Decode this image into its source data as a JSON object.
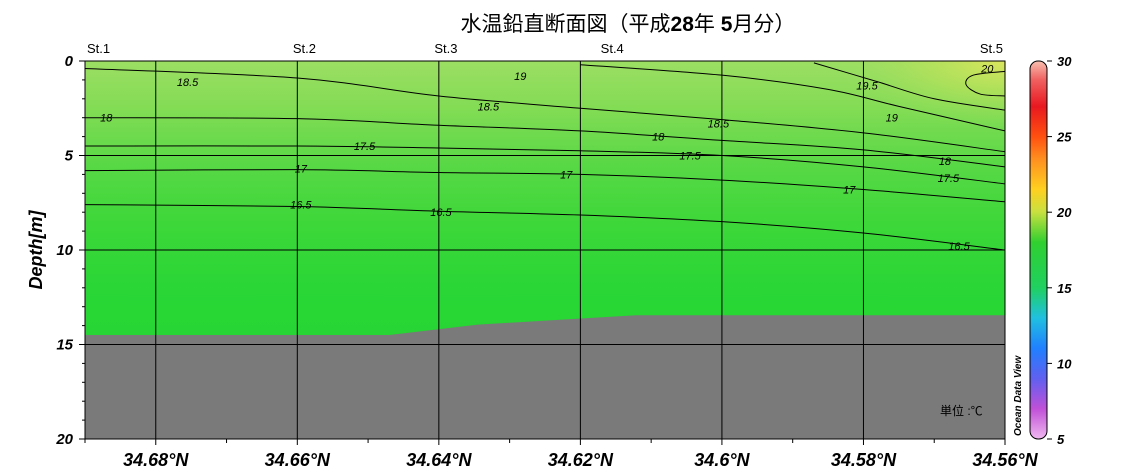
{
  "chart_data": {
    "type": "heatmap",
    "title_parts": [
      "水温鉛直断面図（平成",
      "28",
      "年 ",
      "5",
      "月分）"
    ],
    "ylabel": "Depth[m]",
    "y_ticks": [
      "0",
      "5",
      "10",
      "15",
      "20"
    ],
    "ylim": [
      20,
      0
    ],
    "x_ticks": [
      "34.68°N",
      "34.66°N",
      "34.64°N",
      "34.62°N",
      "34.6°N",
      "34.58°N",
      "34.56°N"
    ],
    "x_tick_values": [
      34.68,
      34.66,
      34.64,
      34.62,
      34.6,
      34.58,
      34.56
    ],
    "xlim": [
      34.69,
      34.56
    ],
    "stations": [
      {
        "name": "St.1",
        "lat": 34.69
      },
      {
        "name": "St.2",
        "lat": 34.659
      },
      {
        "name": "St.3",
        "lat": 34.639
      },
      {
        "name": "St.4",
        "lat": 34.6155
      },
      {
        "name": "St.5",
        "lat": 34.56
      }
    ],
    "unit_label": "単位 :℃",
    "watermark": "Ocean Data View",
    "colorbar": {
      "min": 5,
      "max": 30,
      "ticks": [
        "5",
        "10",
        "15",
        "20",
        "25",
        "30"
      ],
      "tick_values": [
        5,
        10,
        15,
        20,
        25,
        30
      ]
    },
    "contours": [
      {
        "value": 16.5,
        "points": [
          [
            34.69,
            7.6
          ],
          [
            34.66,
            7.7
          ],
          [
            34.64,
            7.95
          ],
          [
            34.62,
            8.15
          ],
          [
            34.6,
            8.5
          ],
          [
            34.58,
            9.1
          ],
          [
            34.56,
            10.0
          ]
        ],
        "labels": [
          {
            "text": "16.5",
            "lat": 34.6595,
            "depth": 7.6
          },
          {
            "text": "16.5",
            "lat": 34.6397,
            "depth": 8.0
          },
          {
            "text": "16.5",
            "lat": 34.5665,
            "depth": 9.8
          }
        ]
      },
      {
        "value": 17,
        "points": [
          [
            34.69,
            5.8
          ],
          [
            34.66,
            5.75
          ],
          [
            34.64,
            5.9
          ],
          [
            34.62,
            6.0
          ],
          [
            34.6,
            6.3
          ],
          [
            34.58,
            6.8
          ],
          [
            34.56,
            7.45
          ]
        ],
        "labels": [
          {
            "text": "17",
            "lat": 34.6595,
            "depth": 5.7
          },
          {
            "text": "17",
            "lat": 34.622,
            "depth": 6.0
          },
          {
            "text": "17",
            "lat": 34.582,
            "depth": 6.8
          }
        ]
      },
      {
        "value": 17.5,
        "points": [
          [
            34.69,
            4.5
          ],
          [
            34.66,
            4.5
          ],
          [
            34.64,
            4.6
          ],
          [
            34.62,
            4.75
          ],
          [
            34.6,
            5.0
          ],
          [
            34.58,
            5.6
          ],
          [
            34.56,
            6.5
          ]
        ],
        "labels": [
          {
            "text": "17.5",
            "lat": 34.6505,
            "depth": 4.5
          },
          {
            "text": "17.5",
            "lat": 34.6045,
            "depth": 5.0
          },
          {
            "text": "17.5",
            "lat": 34.568,
            "depth": 6.2
          }
        ]
      },
      {
        "value": 18,
        "points": [
          [
            34.69,
            3.0
          ],
          [
            34.66,
            3.05
          ],
          [
            34.64,
            3.4
          ],
          [
            34.62,
            3.7
          ],
          [
            34.6,
            4.2
          ],
          [
            34.58,
            4.7
          ],
          [
            34.56,
            5.6
          ]
        ],
        "labels": [
          {
            "text": "18",
            "lat": 34.687,
            "depth": 3.0
          },
          {
            "text": "18",
            "lat": 34.609,
            "depth": 4.0
          },
          {
            "text": "18",
            "lat": 34.5685,
            "depth": 5.3
          }
        ]
      },
      {
        "value": 18.5,
        "points": [
          [
            34.69,
            0.4
          ],
          [
            34.66,
            0.9
          ],
          [
            34.64,
            1.85
          ],
          [
            34.62,
            2.5
          ],
          [
            34.6,
            3.1
          ],
          [
            34.58,
            3.8
          ],
          [
            34.56,
            4.8
          ]
        ],
        "labels": [
          {
            "text": "18.5",
            "lat": 34.6755,
            "depth": 1.1
          },
          {
            "text": "18.5",
            "lat": 34.633,
            "depth": 2.4
          },
          {
            "text": "18.5",
            "lat": 34.6005,
            "depth": 3.3
          }
        ]
      },
      {
        "value": 19,
        "points": [
          [
            34.62,
            0.2
          ],
          [
            34.6,
            0.75
          ],
          [
            34.585,
            1.5
          ],
          [
            34.575,
            2.4
          ],
          [
            34.56,
            3.7
          ]
        ],
        "labels": [
          {
            "text": "19",
            "lat": 34.6285,
            "depth": 0.8
          },
          {
            "text": "19",
            "lat": 34.576,
            "depth": 3.0
          }
        ]
      },
      {
        "value": 19.5,
        "points": [
          [
            34.587,
            0.1
          ],
          [
            34.578,
            1.1
          ],
          [
            34.57,
            2.0
          ],
          [
            34.56,
            2.6
          ]
        ],
        "labels": [
          {
            "text": "19.5",
            "lat": 34.5795,
            "depth": 1.3
          }
        ]
      },
      {
        "value": 20,
        "points": [
          [
            34.56,
            0.55
          ],
          [
            34.5645,
            0.75
          ],
          [
            34.5655,
            1.25
          ],
          [
            34.5635,
            1.75
          ],
          [
            34.56,
            1.85
          ]
        ],
        "labels": [
          {
            "text": "20",
            "lat": 34.5625,
            "depth": 0.4
          }
        ]
      }
    ],
    "bottom_profile": [
      [
        34.69,
        14.5
      ],
      [
        34.647,
        14.5
      ],
      [
        34.6345,
        13.95
      ],
      [
        34.612,
        13.45
      ],
      [
        34.56,
        13.45
      ]
    ],
    "surface_temperature": {
      "St.1": 18.3,
      "St.5": 20.0
    },
    "bottom_temperature": 16.2,
    "land_color": "#7a7a7a"
  }
}
